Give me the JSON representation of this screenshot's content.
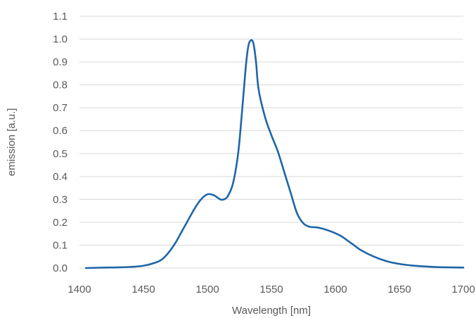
{
  "chart_data": {
    "type": "line",
    "title": "",
    "xlabel": "Wavelength [nm]",
    "ylabel": "emission [a.u.]",
    "xlim": [
      1400,
      1700
    ],
    "ylim": [
      0,
      1.1
    ],
    "x_ticks": [
      "1400",
      "1450",
      "1500",
      "1550",
      "1600",
      "1650",
      "1700"
    ],
    "y_ticks": [
      "0.0",
      "0.1",
      "0.2",
      "0.3",
      "0.4",
      "0.5",
      "0.6",
      "0.7",
      "0.8",
      "0.9",
      "1.0",
      "1.1"
    ],
    "grid": "horizontal",
    "legend": "none",
    "line_color": "#1f65a8",
    "grid_color": "#d9d9d9",
    "series": [
      {
        "x": [
          1405,
          1420,
          1430,
          1440,
          1450,
          1460,
          1465,
          1470,
          1475,
          1480,
          1485,
          1490,
          1495,
          1500,
          1505,
          1510,
          1513,
          1516,
          1520,
          1524,
          1527,
          1530,
          1532,
          1534,
          1536,
          1538,
          1540,
          1545,
          1550,
          1555,
          1560,
          1565,
          1570,
          1575,
          1580,
          1585,
          1590,
          1595,
          1600,
          1605,
          1610,
          1615,
          1620,
          1630,
          1640,
          1650,
          1660,
          1670,
          1680,
          1690,
          1700
        ],
        "y": [
          0.0,
          0.002,
          0.003,
          0.005,
          0.01,
          0.025,
          0.04,
          0.07,
          0.11,
          0.16,
          0.21,
          0.26,
          0.3,
          0.322,
          0.318,
          0.3,
          0.3,
          0.315,
          0.37,
          0.5,
          0.68,
          0.88,
          0.97,
          0.995,
          0.98,
          0.9,
          0.78,
          0.66,
          0.58,
          0.51,
          0.42,
          0.33,
          0.24,
          0.195,
          0.18,
          0.178,
          0.172,
          0.163,
          0.152,
          0.138,
          0.118,
          0.098,
          0.078,
          0.05,
          0.03,
          0.018,
          0.011,
          0.007,
          0.004,
          0.003,
          0.002
        ]
      }
    ]
  }
}
